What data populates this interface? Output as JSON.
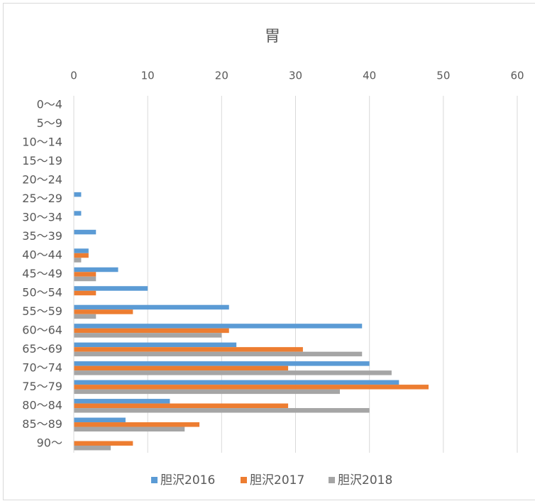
{
  "chart_data": {
    "type": "bar",
    "orientation": "horizontal",
    "title": "胃",
    "categories": [
      "0～4",
      "5～9",
      "10～14",
      "15～19",
      "20～24",
      "25～29",
      "30～34",
      "35～39",
      "40～44",
      "45～49",
      "50～54",
      "55～59",
      "60～64",
      "65～69",
      "70～74",
      "75～79",
      "80～84",
      "85～89",
      "90～"
    ],
    "series": [
      {
        "name": "胆沢2016",
        "color": "#5b9bd5",
        "values": [
          0,
          0,
          0,
          0,
          0,
          1,
          1,
          3,
          2,
          6,
          10,
          21,
          39,
          22,
          40,
          44,
          13,
          7,
          0
        ]
      },
      {
        "name": "胆沢2017",
        "color": "#ed7d31",
        "values": [
          0,
          0,
          0,
          0,
          0,
          0,
          0,
          0,
          2,
          3,
          3,
          8,
          21,
          31,
          29,
          48,
          29,
          17,
          8
        ]
      },
      {
        "name": "胆沢2018",
        "color": "#a5a5a5",
        "values": [
          0,
          0,
          0,
          0,
          0,
          0,
          0,
          0,
          1,
          3,
          0,
          3,
          20,
          39,
          43,
          36,
          40,
          15,
          5
        ]
      }
    ],
    "xlim": [
      0,
      60
    ],
    "xticks": [
      0,
      10,
      20,
      30,
      40,
      50,
      60
    ],
    "grid": true,
    "legend": "bottom"
  }
}
